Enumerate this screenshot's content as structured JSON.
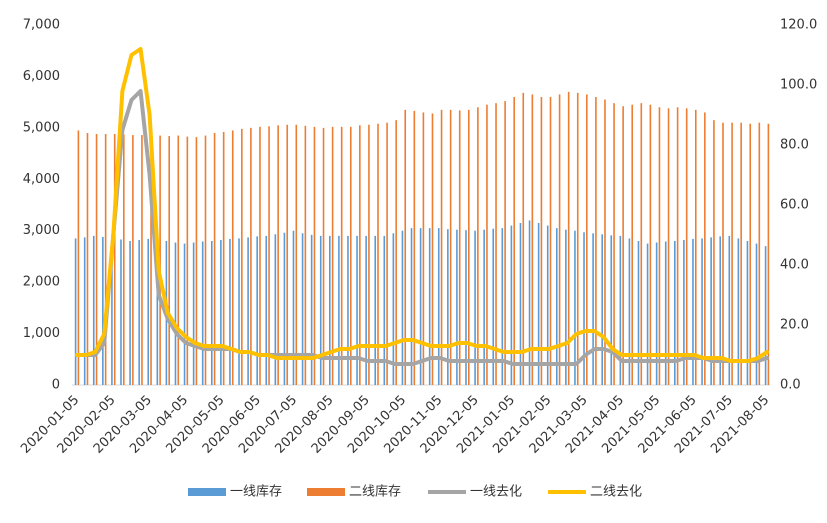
{
  "chart_data": {
    "type": "bar",
    "categories": [
      "2020-01-05",
      null,
      null,
      null,
      "2020-02-05",
      null,
      null,
      null,
      "2020-03-05",
      null,
      null,
      null,
      "2020-04-05",
      null,
      null,
      null,
      "2020-05-05",
      null,
      null,
      null,
      "2020-06-05",
      null,
      null,
      null,
      "2020-07-05",
      null,
      null,
      null,
      "2020-08-05",
      null,
      null,
      null,
      "2020-09-05",
      null,
      null,
      null,
      "2020-10-05",
      null,
      null,
      null,
      "2020-11-05",
      null,
      null,
      null,
      "2020-12-05",
      null,
      null,
      null,
      "2021-01-05",
      null,
      null,
      null,
      "2021-02-05",
      null,
      null,
      null,
      "2021-03-05",
      null,
      null,
      null,
      "2021-04-05",
      null,
      null,
      null,
      "2021-05-05",
      null,
      null,
      null,
      "2021-06-05",
      null,
      null,
      null,
      "2021-07-05",
      null,
      null,
      null,
      "2021-08-05"
    ],
    "series": [
      {
        "name": "一线库存",
        "type": "bar",
        "color": "#5b9bd5",
        "values": [
          2850,
          2870,
          2900,
          2880,
          2850,
          2830,
          2800,
          2820,
          2840,
          2850,
          2800,
          2770,
          2750,
          2770,
          2790,
          2800,
          2820,
          2840,
          2850,
          2870,
          2890,
          2900,
          2930,
          2960,
          3000,
          2950,
          2920,
          2900,
          2900,
          2900,
          2900,
          2900,
          2900,
          2900,
          2900,
          2950,
          3000,
          3050,
          3050,
          3050,
          3050,
          3030,
          3020,
          3010,
          3000,
          3020,
          3040,
          3050,
          3100,
          3150,
          3200,
          3150,
          3100,
          3050,
          3020,
          3000,
          2970,
          2950,
          2930,
          2910,
          2900,
          2850,
          2800,
          2750,
          2770,
          2790,
          2800,
          2820,
          2840,
          2850,
          2870,
          2890,
          2900,
          2850,
          2800,
          2750,
          2700
        ]
      },
      {
        "name": "二线库存",
        "type": "bar",
        "color": "#ed7d31",
        "values": [
          4950,
          4900,
          4880,
          4880,
          4880,
          4870,
          4860,
          4860,
          4850,
          4850,
          4840,
          4850,
          4830,
          4820,
          4850,
          4900,
          4920,
          4950,
          4980,
          5000,
          5020,
          5030,
          5050,
          5060,
          5060,
          5040,
          5020,
          5000,
          5020,
          5020,
          5020,
          5050,
          5060,
          5080,
          5100,
          5150,
          5350,
          5330,
          5300,
          5280,
          5350,
          5350,
          5340,
          5350,
          5400,
          5450,
          5480,
          5520,
          5600,
          5680,
          5650,
          5600,
          5600,
          5650,
          5700,
          5680,
          5650,
          5600,
          5550,
          5480,
          5420,
          5450,
          5480,
          5450,
          5400,
          5380,
          5400,
          5380,
          5350,
          5300,
          5150,
          5100,
          5100,
          5100,
          5080,
          5100,
          5080
        ]
      },
      {
        "name": "一线去化",
        "type": "line",
        "axis": "y2",
        "color": "#a5a5a5",
        "values": [
          10,
          10,
          10,
          14,
          50,
          85,
          95,
          98,
          70,
          30,
          22,
          17,
          14,
          13,
          12,
          12,
          12,
          12,
          11,
          11,
          10,
          10,
          10,
          10,
          10,
          10,
          10,
          9,
          9,
          9,
          9,
          9,
          8,
          8,
          8,
          7,
          7,
          7,
          8,
          9,
          9,
          8,
          8,
          8,
          8,
          8,
          8,
          8,
          7,
          7,
          7,
          7,
          7,
          7,
          7,
          7,
          10,
          12,
          12,
          11,
          8,
          8,
          8,
          8,
          8,
          8,
          8,
          9,
          9,
          9,
          8,
          8,
          8,
          8,
          8,
          8,
          9
        ]
      },
      {
        "name": "二线去化",
        "type": "line",
        "axis": "y2",
        "color": "#ffc000",
        "values": [
          10,
          10,
          11,
          17,
          50,
          98,
          110,
          112,
          90,
          38,
          24,
          19,
          16,
          14,
          13,
          13,
          13,
          12,
          11,
          11,
          10,
          10,
          9,
          9,
          9,
          9,
          9,
          10,
          11,
          12,
          12,
          13,
          13,
          13,
          13,
          14,
          15,
          15,
          14,
          13,
          13,
          13,
          14,
          14,
          13,
          13,
          12,
          11,
          11,
          11,
          12,
          12,
          12,
          13,
          14,
          17,
          18,
          18,
          16,
          12,
          10,
          10,
          10,
          10,
          10,
          10,
          10,
          10,
          10,
          9,
          9,
          9,
          8,
          8,
          8,
          9,
          11
        ]
      }
    ],
    "ylim": [
      0,
      7000
    ],
    "yticks": [
      0,
      {
        "value": 1000,
        "label": "1,000"
      },
      {
        "value": 2000,
        "label": "2,000"
      },
      {
        "value": 3000,
        "label": "3,000"
      },
      {
        "value": 4000,
        "label": "4,000"
      },
      {
        "value": 5000,
        "label": "5,000"
      },
      {
        "value": 6000,
        "label": "6,000"
      },
      {
        "value": 7000,
        "label": "7,000"
      }
    ],
    "y2lim": [
      0,
      120
    ],
    "y2ticks": [
      {
        "value": 0,
        "label": "0.0"
      },
      {
        "value": 20,
        "label": "20.0"
      },
      {
        "value": 40,
        "label": "40.0"
      },
      {
        "value": 60,
        "label": "60.0"
      },
      {
        "value": 80,
        "label": "80.0"
      },
      {
        "value": 100,
        "label": "100.0"
      },
      {
        "value": 120,
        "label": "120.0"
      }
    ],
    "grid": false,
    "legend": "bottom"
  }
}
